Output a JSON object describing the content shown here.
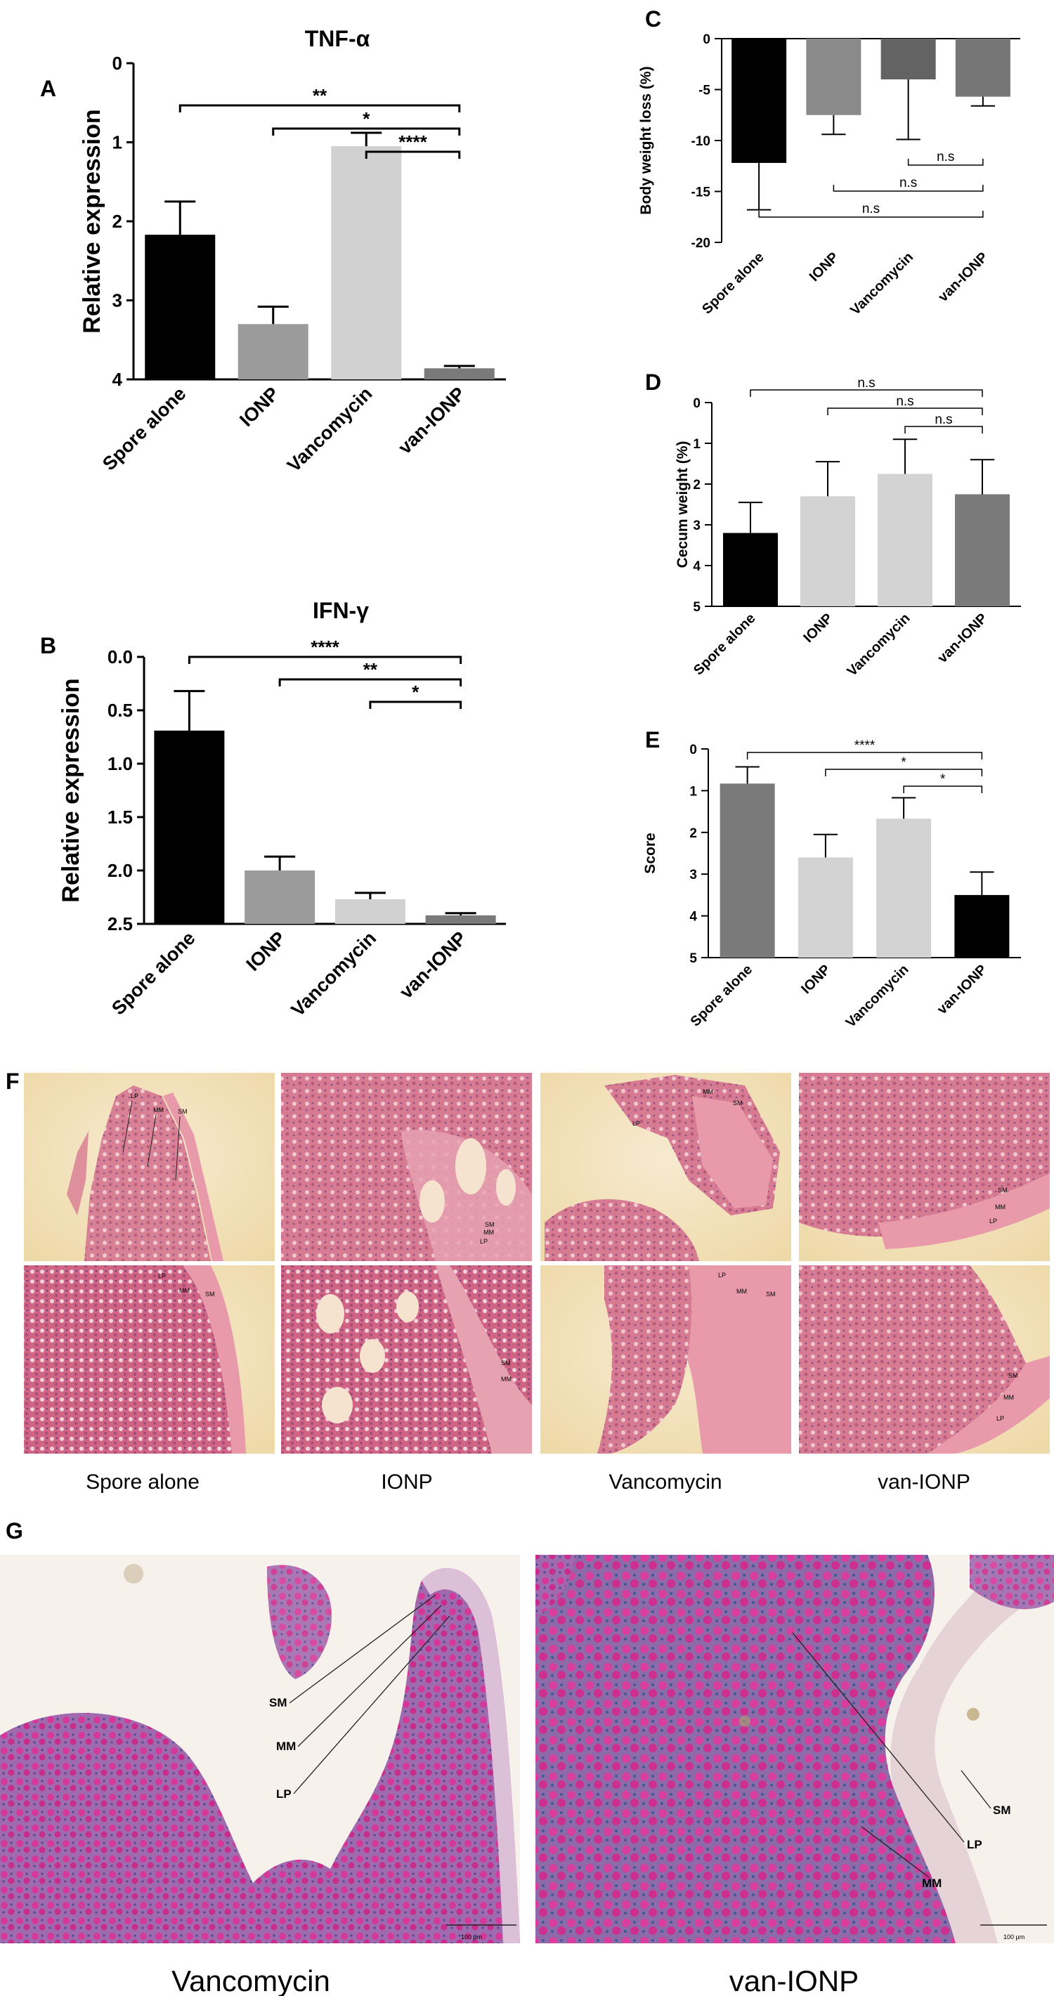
{
  "panel_letters": {
    "A": "A",
    "B": "B",
    "C": "C",
    "D": "D",
    "E": "E",
    "F": "F",
    "G": "G"
  },
  "chart_data": [
    {
      "id": "A",
      "type": "bar",
      "title": "TNF-α",
      "ylabel": "Relative expression",
      "categories": [
        "Spore alone",
        "IONP",
        "Vancomycin",
        "van-IONP"
      ],
      "values": [
        1.83,
        0.7,
        2.95,
        0.14
      ],
      "errors": [
        0.42,
        0.22,
        0.17,
        0.03
      ],
      "colors": [
        "#000000",
        "#9b9b9b",
        "#d1d1d1",
        "#7a7a7a"
      ],
      "ylim": [
        0,
        4
      ],
      "yticks": [
        "0",
        "1",
        "2",
        "3",
        "4"
      ],
      "significance": [
        {
          "from": 0,
          "to": 3,
          "label": "**"
        },
        {
          "from": 1,
          "to": 3,
          "label": "*"
        },
        {
          "from": 2,
          "to": 3,
          "label": "****"
        }
      ]
    },
    {
      "id": "B",
      "type": "bar",
      "title": "IFN-γ",
      "ylabel": "Relative expression",
      "categories": [
        "Spore alone",
        "IONP",
        "Vancomycin",
        "van-IONP"
      ],
      "values": [
        1.81,
        0.5,
        0.23,
        0.08
      ],
      "errors": [
        0.37,
        0.13,
        0.06,
        0.02
      ],
      "colors": [
        "#000000",
        "#9b9b9b",
        "#d1d1d1",
        "#7a7a7a"
      ],
      "ylim": [
        0,
        2.5
      ],
      "yticks": [
        "0.0",
        "0.5",
        "1.0",
        "1.5",
        "2.0",
        "2.5"
      ],
      "significance": [
        {
          "from": 0,
          "to": 3,
          "label": "****"
        },
        {
          "from": 1,
          "to": 3,
          "label": "**"
        },
        {
          "from": 2,
          "to": 3,
          "label": "*"
        }
      ]
    },
    {
      "id": "C",
      "type": "bar",
      "title": "",
      "ylabel": "Body weight loss (%)",
      "categories": [
        "Spore alone",
        "IONP",
        "Vancomycin",
        "van-IONP"
      ],
      "values": [
        -12.2,
        -7.5,
        -4.0,
        -5.7
      ],
      "errors": [
        4.6,
        1.9,
        5.9,
        0.9
      ],
      "colors": [
        "#000000",
        "#8a8a8a",
        "#636363",
        "#767676"
      ],
      "ylim": [
        -20,
        0
      ],
      "yticks": [
        "0",
        "-5",
        "-10",
        "-15",
        "-20"
      ],
      "significance": [
        {
          "from": 2,
          "to": 3,
          "label": "n.s"
        },
        {
          "from": 1,
          "to": 3,
          "label": "n.s"
        },
        {
          "from": 0,
          "to": 3,
          "label": "n.s"
        }
      ]
    },
    {
      "id": "D",
      "type": "bar",
      "title": "",
      "ylabel": "Cecum weight (%)",
      "categories": [
        "Spore alone",
        "IONP",
        "Vancomycin",
        "van-IONP"
      ],
      "values": [
        1.8,
        2.7,
        3.25,
        2.75
      ],
      "errors": [
        0.75,
        0.85,
        0.85,
        0.85
      ],
      "colors": [
        "#000000",
        "#d3d3d3",
        "#d3d3d3",
        "#7a7a7a"
      ],
      "ylim": [
        0,
        5
      ],
      "yticks": [
        "0",
        "1",
        "2",
        "3",
        "4",
        "5"
      ],
      "significance": [
        {
          "from": 0,
          "to": 3,
          "label": "n.s"
        },
        {
          "from": 1,
          "to": 3,
          "label": "n.s"
        },
        {
          "from": 2,
          "to": 3,
          "label": "n.s"
        }
      ]
    },
    {
      "id": "E",
      "type": "bar",
      "title": "",
      "ylabel": "Score",
      "categories": [
        "Spore alone",
        "IONP",
        "Vancomycin",
        "van-IONP"
      ],
      "values": [
        4.17,
        2.4,
        3.33,
        1.5
      ],
      "errors": [
        0.4,
        0.55,
        0.5,
        0.55
      ],
      "colors": [
        "#7a7a7a",
        "#d3d3d3",
        "#d3d3d3",
        "#000000"
      ],
      "ylim": [
        0,
        5
      ],
      "yticks": [
        "0",
        "1",
        "2",
        "3",
        "4",
        "5"
      ],
      "significance": [
        {
          "from": 0,
          "to": 3,
          "label": "****"
        },
        {
          "from": 1,
          "to": 3,
          "label": "*"
        },
        {
          "from": 2,
          "to": 3,
          "label": "*"
        }
      ]
    }
  ],
  "histology": {
    "labels": [
      "Spore alone",
      "IONP",
      "Vancomycin",
      "van-IONP"
    ],
    "tissue_tags": {
      "lp": "LP",
      "mm": "MM",
      "sm": "SM"
    }
  },
  "panel_g": {
    "labels": [
      "Vancomycin",
      "van-IONP"
    ],
    "tissue_tags": {
      "sm": "SM",
      "mm": "MM",
      "lp": "LP"
    },
    "scale": "100 μm"
  },
  "colors": {
    "he_background": "#f2e2b8",
    "he_tissue": "#d7788f",
    "pas_background": "#f6f1ea",
    "pas_tissue": "#b86db0",
    "pas_goblet": "#d6389a"
  }
}
